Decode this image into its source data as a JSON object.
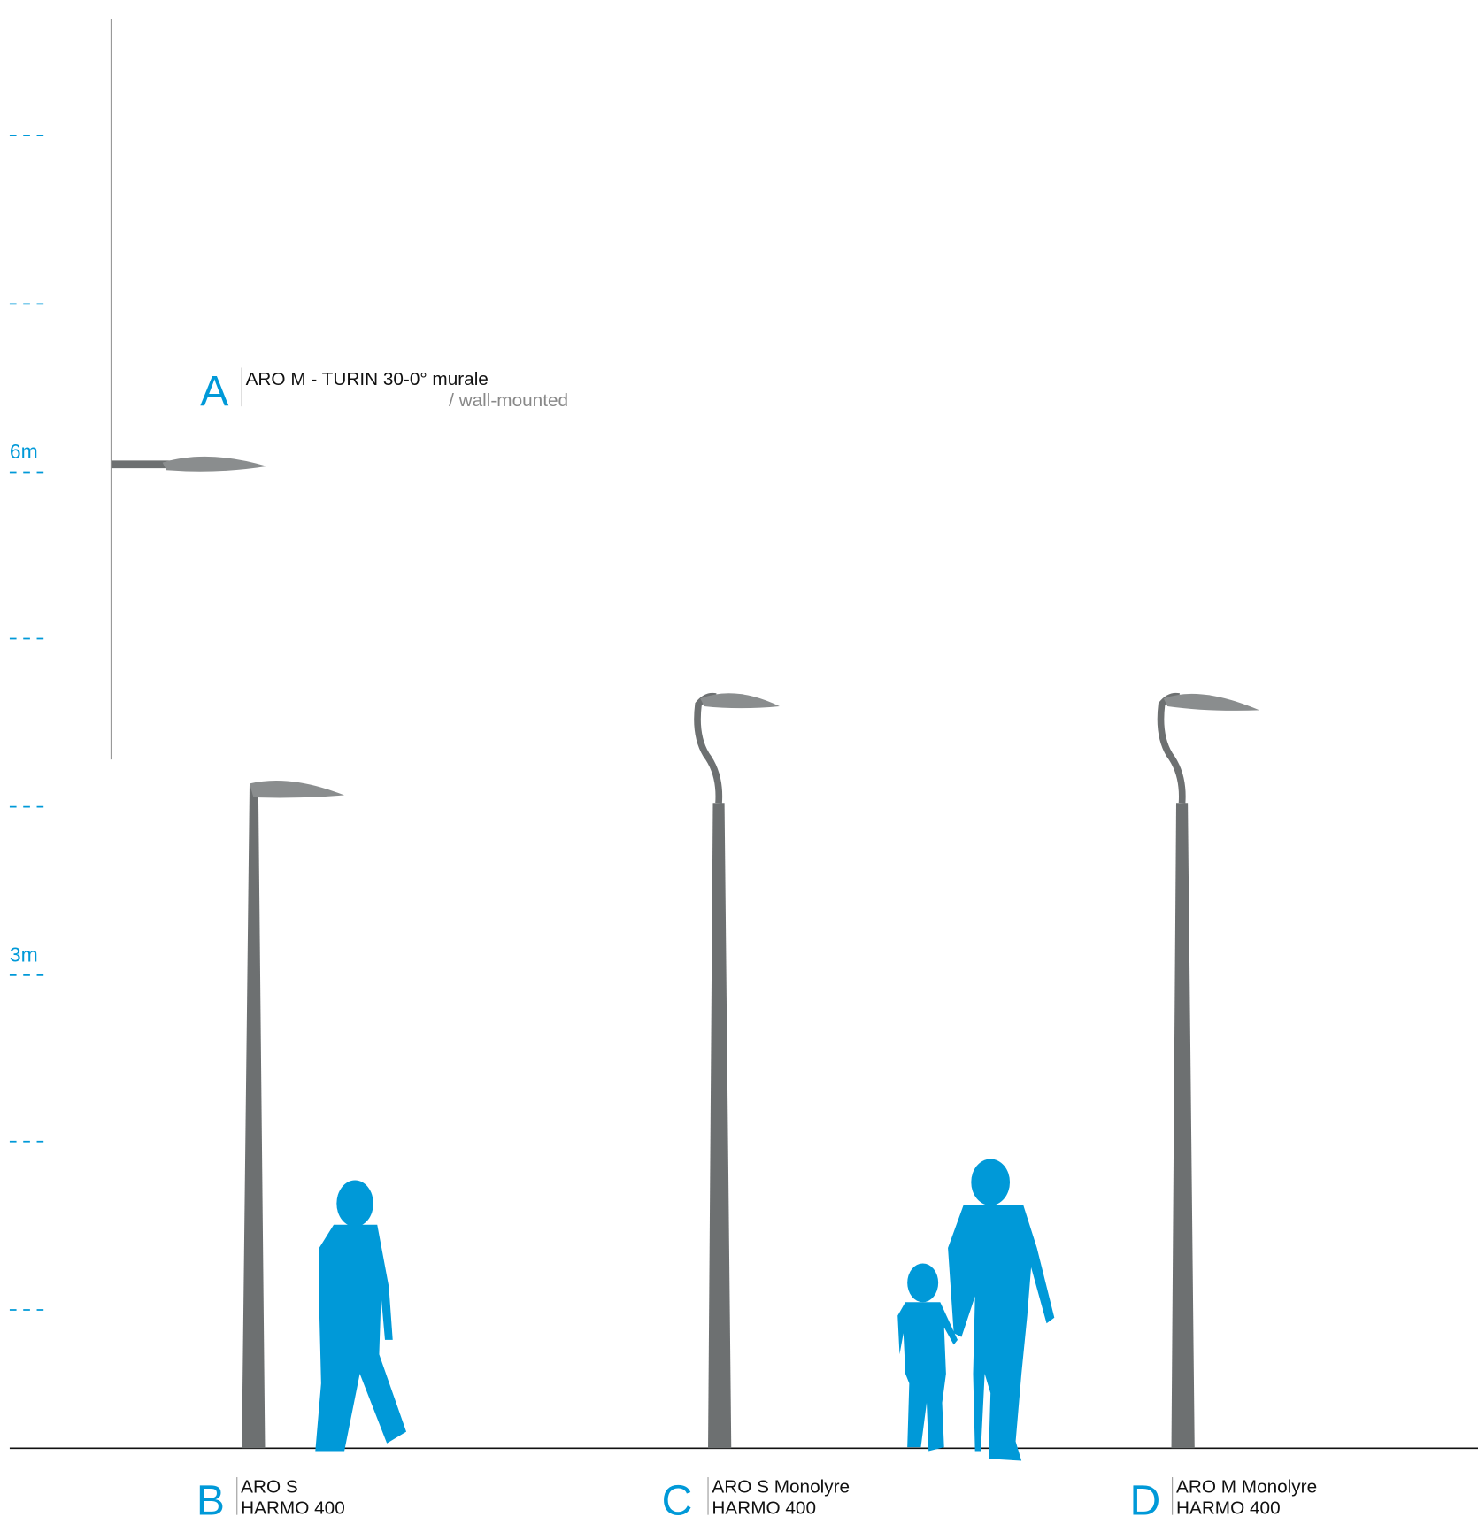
{
  "scale_labels": [
    "6m",
    "3m"
  ],
  "products": [
    {
      "letter": "A",
      "lines": [
        "ARO M - TURIN 30-0° murale"
      ],
      "note": "/ wall-mounted"
    },
    {
      "letter": "B",
      "lines": [
        "ARO S",
        "HARMO 400"
      ]
    },
    {
      "letter": "C",
      "lines": [
        "ARO S Monolyre",
        "HARMO 400"
      ]
    },
    {
      "letter": "D",
      "lines": [
        "ARO M Monolyre",
        "HARMO 400"
      ]
    }
  ]
}
